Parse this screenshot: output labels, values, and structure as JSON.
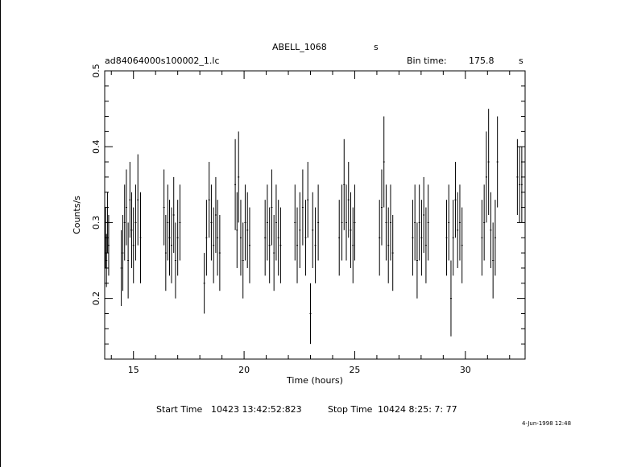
{
  "chart_data": {
    "type": "scatter",
    "title": "ABELL_1068",
    "title_suffix": "s",
    "subtitle": "ad84064000s100002_1.lc",
    "bin_time_label": "Bin time:",
    "bin_time_value": "175.8",
    "bin_time_unit": "s",
    "xlabel": "Time (hours)",
    "ylabel": "Counts/s",
    "xlim": [
      13.7,
      32.7
    ],
    "ylim": [
      0.12,
      0.5
    ],
    "x_ticks": [
      15,
      20,
      25,
      30
    ],
    "x_tick_labels": [
      "15",
      "20",
      "25",
      "30"
    ],
    "y_ticks": [
      0.2,
      0.3,
      0.4,
      0.5
    ],
    "y_tick_labels": [
      "0.2",
      "0.3",
      "0.4",
      "0.5"
    ],
    "error_bars": true,
    "grid": false,
    "series": [
      {
        "points": [
          [
            13.74,
            0.28,
            0.04
          ],
          [
            13.78,
            0.25,
            0.035
          ],
          [
            13.83,
            0.3,
            0.04
          ],
          [
            13.88,
            0.27,
            0.04
          ],
          [
            14.45,
            0.24,
            0.05
          ],
          [
            14.52,
            0.26,
            0.05
          ],
          [
            14.6,
            0.3,
            0.05
          ],
          [
            14.68,
            0.32,
            0.05
          ],
          [
            14.76,
            0.25,
            0.05
          ],
          [
            14.84,
            0.33,
            0.05
          ],
          [
            14.92,
            0.29,
            0.05
          ],
          [
            15.0,
            0.27,
            0.05
          ],
          [
            15.1,
            0.3,
            0.05
          ],
          [
            15.2,
            0.33,
            0.06
          ],
          [
            15.32,
            0.28,
            0.06
          ],
          [
            16.38,
            0.32,
            0.05
          ],
          [
            16.46,
            0.26,
            0.05
          ],
          [
            16.55,
            0.3,
            0.05
          ],
          [
            16.63,
            0.28,
            0.05
          ],
          [
            16.72,
            0.27,
            0.05
          ],
          [
            16.82,
            0.31,
            0.05
          ],
          [
            16.9,
            0.25,
            0.05
          ],
          [
            17.0,
            0.28,
            0.05
          ],
          [
            17.1,
            0.3,
            0.05
          ],
          [
            18.2,
            0.22,
            0.04
          ],
          [
            18.3,
            0.28,
            0.05
          ],
          [
            18.42,
            0.33,
            0.05
          ],
          [
            18.52,
            0.3,
            0.05
          ],
          [
            18.62,
            0.27,
            0.05
          ],
          [
            18.72,
            0.31,
            0.05
          ],
          [
            18.8,
            0.28,
            0.05
          ],
          [
            18.9,
            0.26,
            0.05
          ],
          [
            19.6,
            0.35,
            0.06
          ],
          [
            19.68,
            0.29,
            0.05
          ],
          [
            19.75,
            0.36,
            0.06
          ],
          [
            19.85,
            0.28,
            0.05
          ],
          [
            19.95,
            0.25,
            0.05
          ],
          [
            20.05,
            0.3,
            0.05
          ],
          [
            20.15,
            0.29,
            0.05
          ],
          [
            20.25,
            0.27,
            0.05
          ],
          [
            20.95,
            0.28,
            0.05
          ],
          [
            21.05,
            0.3,
            0.05
          ],
          [
            21.15,
            0.27,
            0.05
          ],
          [
            21.25,
            0.32,
            0.05
          ],
          [
            21.35,
            0.26,
            0.05
          ],
          [
            21.45,
            0.3,
            0.05
          ],
          [
            21.55,
            0.28,
            0.05
          ],
          [
            21.65,
            0.27,
            0.05
          ],
          [
            22.3,
            0.3,
            0.05
          ],
          [
            22.4,
            0.27,
            0.05
          ],
          [
            22.52,
            0.29,
            0.05
          ],
          [
            22.65,
            0.32,
            0.05
          ],
          [
            22.78,
            0.28,
            0.05
          ],
          [
            22.88,
            0.33,
            0.05
          ],
          [
            23.0,
            0.18,
            0.04
          ],
          [
            23.1,
            0.29,
            0.05
          ],
          [
            23.22,
            0.27,
            0.05
          ],
          [
            23.35,
            0.3,
            0.05
          ],
          [
            24.3,
            0.28,
            0.05
          ],
          [
            24.42,
            0.3,
            0.05
          ],
          [
            24.52,
            0.35,
            0.06
          ],
          [
            24.62,
            0.3,
            0.05
          ],
          [
            24.72,
            0.33,
            0.05
          ],
          [
            24.82,
            0.29,
            0.05
          ],
          [
            24.92,
            0.27,
            0.05
          ],
          [
            25.0,
            0.3,
            0.05
          ],
          [
            26.12,
            0.28,
            0.05
          ],
          [
            26.22,
            0.32,
            0.05
          ],
          [
            26.32,
            0.38,
            0.06
          ],
          [
            26.42,
            0.3,
            0.05
          ],
          [
            26.52,
            0.27,
            0.05
          ],
          [
            26.62,
            0.3,
            0.05
          ],
          [
            26.72,
            0.26,
            0.05
          ],
          [
            27.62,
            0.28,
            0.05
          ],
          [
            27.72,
            0.3,
            0.05
          ],
          [
            27.82,
            0.25,
            0.05
          ],
          [
            27.92,
            0.3,
            0.05
          ],
          [
            28.02,
            0.28,
            0.05
          ],
          [
            28.12,
            0.31,
            0.05
          ],
          [
            28.22,
            0.27,
            0.05
          ],
          [
            28.32,
            0.3,
            0.05
          ],
          [
            29.15,
            0.28,
            0.05
          ],
          [
            29.25,
            0.3,
            0.05
          ],
          [
            29.35,
            0.2,
            0.05
          ],
          [
            29.45,
            0.28,
            0.05
          ],
          [
            29.55,
            0.33,
            0.05
          ],
          [
            29.65,
            0.29,
            0.05
          ],
          [
            29.75,
            0.3,
            0.05
          ],
          [
            29.85,
            0.27,
            0.05
          ],
          [
            30.75,
            0.28,
            0.05
          ],
          [
            30.85,
            0.3,
            0.05
          ],
          [
            30.95,
            0.36,
            0.06
          ],
          [
            31.05,
            0.38,
            0.07
          ],
          [
            31.15,
            0.29,
            0.05
          ],
          [
            31.25,
            0.25,
            0.05
          ],
          [
            31.35,
            0.28,
            0.05
          ],
          [
            31.45,
            0.38,
            0.06
          ],
          [
            32.35,
            0.36,
            0.05
          ],
          [
            32.45,
            0.35,
            0.05
          ],
          [
            32.55,
            0.35,
            0.05
          ]
        ]
      }
    ]
  },
  "footer": {
    "start_label": "Start Time",
    "start_value": "10423 13:42:52:823",
    "stop_label": "Stop Time",
    "stop_value": "10424  8:25: 7: 77",
    "stamp": "4-Jun-1998 12:48"
  },
  "colors": {
    "ink": "#000000",
    "background": "#ffffff"
  }
}
